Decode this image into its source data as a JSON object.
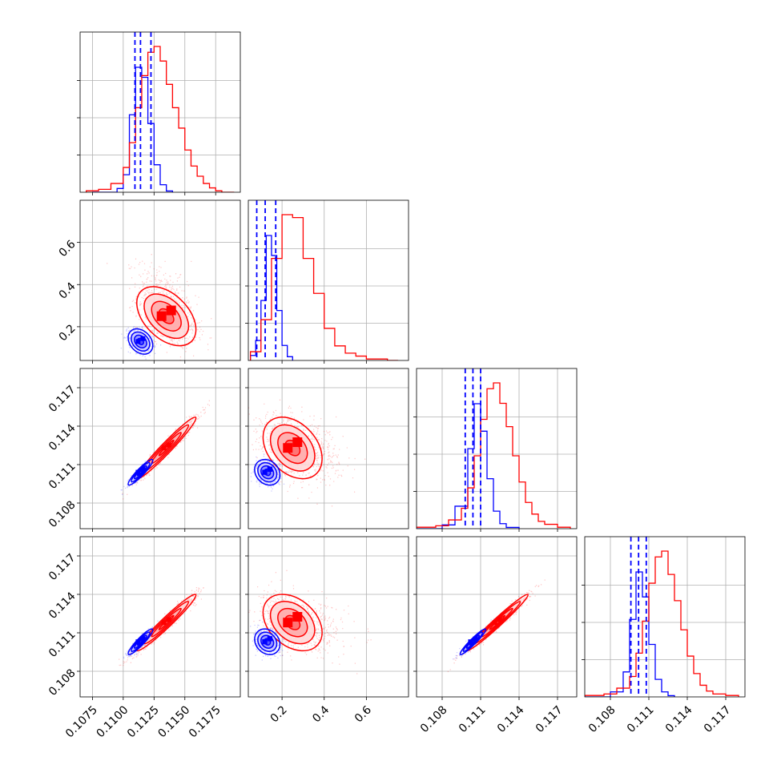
{
  "chart_data": {
    "type": "corner",
    "colors": {
      "series_a": "#0000ff",
      "series_b": "#ff0000",
      "grid": "#b0b0b0"
    },
    "grid": true,
    "series": [
      {
        "color": "#0000ff",
        "mean": [
          0.1114,
          0.13,
          0.1104,
          0.1103
        ],
        "sd": [
          0.0005,
          0.03,
          0.0005,
          0.0005
        ],
        "quantiles": [
          [
            0.11095,
            0.1114,
            0.11225
          ],
          [
            0.08,
            0.12,
            0.17
          ],
          [
            0.1098,
            0.1104,
            0.111
          ],
          [
            0.1096,
            0.1102,
            0.1108
          ]
        ],
        "hist": [
          {
            "edges": [
              0.1075,
              0.1095,
              0.11,
              0.1105,
              0.111,
              0.1115,
              0.112,
              0.1125,
              0.113,
              0.1135,
              0.114
            ],
            "counts": [
              0,
              3,
              14,
              62,
              100,
              92,
              55,
              22,
              6,
              1
            ]
          },
          {
            "edges": [
              0.05,
              0.075,
              0.1,
              0.125,
              0.15,
              0.175,
              0.2,
              0.225,
              0.25
            ],
            "counts": [
              4,
              16,
              48,
              100,
              84,
              40,
              12,
              3
            ]
          },
          {
            "edges": [
              0.106,
              0.108,
              0.109,
              0.11,
              0.1105,
              0.111,
              0.1115,
              0.112,
              0.1125,
              0.113,
              0.114
            ],
            "counts": [
              0,
              3,
              18,
              64,
              100,
              78,
              40,
              14,
              4,
              1
            ]
          },
          {
            "edges": [
              0.106,
              0.108,
              0.109,
              0.1095,
              0.11,
              0.1105,
              0.111,
              0.1115,
              0.112,
              0.1125,
              0.113
            ],
            "counts": [
              0,
              4,
              20,
              62,
              100,
              80,
              42,
              14,
              4,
              1
            ]
          }
        ]
      },
      {
        "color": "#ff0000",
        "mean": [
          0.1135,
          0.25,
          0.1123,
          0.1118
        ],
        "sd": [
          0.0012,
          0.07,
          0.0012,
          0.0011
        ],
        "hist": [
          {
            "edges": [
              0.107,
              0.108,
              0.109,
              0.11,
              0.1105,
              0.111,
              0.1115,
              0.112,
              0.1125,
              0.113,
              0.1135,
              0.114,
              0.1145,
              0.115,
              0.1155,
              0.116,
              0.1165,
              0.117,
              0.1175,
              0.118,
              0.119
            ],
            "counts": [
              1,
              2,
              6,
              17,
              34,
              58,
              80,
              96,
              100,
              90,
              74,
              58,
              44,
              29,
              18,
              11,
              6,
              3,
              1,
              0
            ]
          },
          {
            "edges": [
              0.05,
              0.1,
              0.15,
              0.2,
              0.25,
              0.3,
              0.35,
              0.4,
              0.45,
              0.5,
              0.55,
              0.6,
              0.65,
              0.7,
              0.75
            ],
            "counts": [
              6,
              28,
              70,
              100,
              98,
              70,
              46,
              22,
              10,
              5,
              3,
              1,
              1,
              0
            ]
          },
          {
            "edges": [
              0.106,
              0.1075,
              0.1085,
              0.1095,
              0.11,
              0.1105,
              0.111,
              0.1115,
              0.112,
              0.1125,
              0.113,
              0.1135,
              0.114,
              0.1145,
              0.115,
              0.1155,
              0.116,
              0.117,
              0.118
            ],
            "counts": [
              1,
              2,
              6,
              14,
              28,
              50,
              75,
              96,
              100,
              86,
              70,
              50,
              32,
              18,
              10,
              5,
              3,
              1
            ]
          },
          {
            "edges": [
              0.106,
              0.1075,
              0.1085,
              0.1095,
              0.11,
              0.1105,
              0.111,
              0.1115,
              0.112,
              0.1125,
              0.113,
              0.1135,
              0.114,
              0.1145,
              0.115,
              0.1155,
              0.116,
              0.117,
              0.118
            ],
            "counts": [
              1,
              2,
              6,
              14,
              30,
              52,
              78,
              96,
              100,
              84,
              66,
              46,
              28,
              16,
              8,
              4,
              2,
              1
            ]
          }
        ]
      }
    ],
    "pairs": [
      {
        "row": 1,
        "col": 0,
        "corr_a": -0.3,
        "corr_b": -0.45
      },
      {
        "row": 2,
        "col": 0,
        "corr_a": 0.92,
        "corr_b": 0.97
      },
      {
        "row": 2,
        "col": 1,
        "corr_a": -0.2,
        "corr_b": -0.35
      },
      {
        "row": 3,
        "col": 0,
        "corr_a": 0.92,
        "corr_b": 0.97
      },
      {
        "row": 3,
        "col": 1,
        "corr_a": -0.2,
        "corr_b": -0.35
      },
      {
        "row": 3,
        "col": 2,
        "corr_a": 0.95,
        "corr_b": 0.98
      }
    ],
    "axis_ranges": [
      [
        0.1065,
        0.1195
      ],
      [
        0.04,
        0.8
      ],
      [
        0.106,
        0.1185
      ],
      [
        0.106,
        0.1185
      ]
    ],
    "ticks": [
      {
        "values": [
          0.1075,
          0.11,
          0.1125,
          0.115,
          0.1175
        ],
        "labels": [
          "0.1075",
          "0.1100",
          "0.1125",
          "0.1150",
          "0.1175"
        ]
      },
      {
        "values": [
          0.2,
          0.4,
          0.6
        ],
        "labels": [
          "0.2",
          "0.4",
          "0.6"
        ]
      },
      {
        "values": [
          0.108,
          0.111,
          0.114,
          0.117
        ],
        "labels": [
          "0.108",
          "0.111",
          "0.114",
          "0.117"
        ]
      },
      {
        "values": [
          0.108,
          0.111,
          0.114,
          0.117
        ],
        "labels": [
          "0.108",
          "0.111",
          "0.114",
          "0.117"
        ]
      }
    ],
    "contour_levels_sigma": [
      0.5,
      1.0,
      1.5,
      2.0
    ]
  }
}
